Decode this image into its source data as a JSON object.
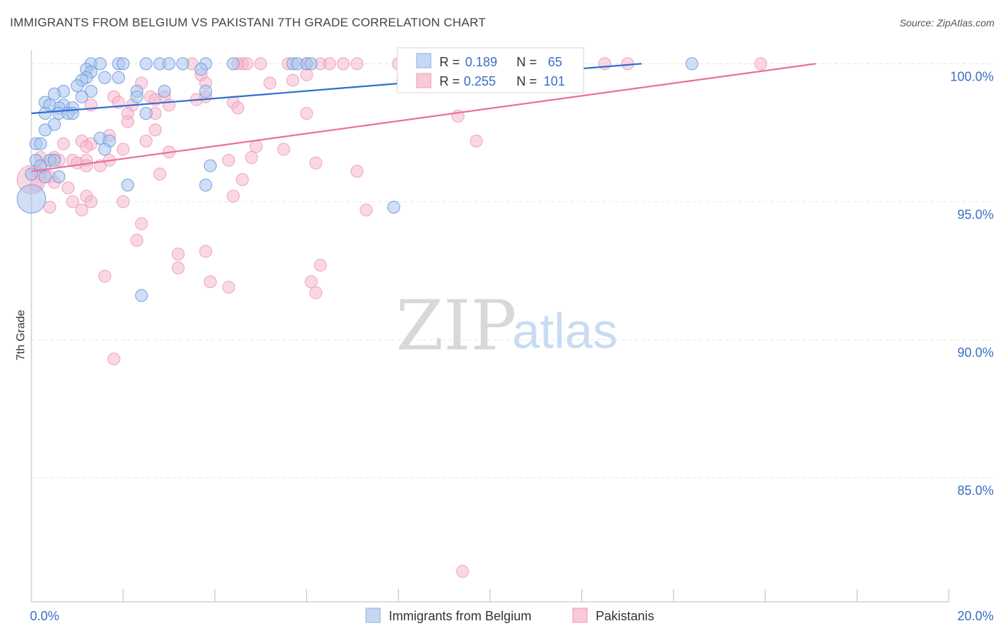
{
  "title": "IMMIGRANTS FROM BELGIUM VS PAKISTANI 7TH GRADE CORRELATION CHART",
  "source": "Source: ZipAtlas.com",
  "watermark": {
    "zip": "ZIP",
    "atlas": "atlas"
  },
  "colors": {
    "blue_fill": "#a9c4ec",
    "blue_line": "#2f6fd0",
    "pink_fill": "#f5b8cc",
    "pink_line": "#e8709a",
    "axis_text": "#3a6fc4",
    "grid": "#e6e6e6"
  },
  "chart_data": {
    "type": "scatter",
    "title": "IMMIGRANTS FROM BELGIUM VS PAKISTANI 7TH GRADE CORRELATION CHART",
    "xlabel": "",
    "ylabel": "7th Grade",
    "xlim": [
      0,
      20
    ],
    "ylim": [
      80.5,
      100.5
    ],
    "x_tick_labels": [
      "0.0%",
      "20.0%"
    ],
    "y_ticks": [
      100,
      95,
      90,
      85
    ],
    "y_tick_labels": [
      "100.0%",
      "95.0%",
      "90.0%",
      "85.0%"
    ],
    "series": [
      {
        "name": "Immigrants from Belgium",
        "color": "#a9c4ec",
        "line_color": "#2f6fd0",
        "R": "0.189",
        "N": "65",
        "trend": {
          "x0": 0.0,
          "y0": 98.2,
          "x1": 13.3,
          "y1": 100.0
        },
        "points": [
          [
            1.3,
            100
          ],
          [
            1.5,
            100
          ],
          [
            1.9,
            100
          ],
          [
            2.0,
            100
          ],
          [
            2.5,
            100
          ],
          [
            2.8,
            100
          ],
          [
            3.0,
            100
          ],
          [
            3.3,
            100
          ],
          [
            3.8,
            100
          ],
          [
            4.4,
            100
          ],
          [
            5.7,
            100
          ],
          [
            5.8,
            100
          ],
          [
            6.0,
            100
          ],
          [
            6.1,
            100
          ],
          [
            14.4,
            100
          ],
          [
            1.2,
            99.8
          ],
          [
            1.3,
            99.7
          ],
          [
            1.6,
            99.5
          ],
          [
            1.9,
            99.5
          ],
          [
            1.2,
            99.5
          ],
          [
            1.1,
            99.4
          ],
          [
            3.7,
            99.8
          ],
          [
            1.0,
            99.2
          ],
          [
            1.3,
            99.0
          ],
          [
            0.7,
            99.0
          ],
          [
            1.1,
            98.8
          ],
          [
            0.5,
            98.9
          ],
          [
            2.3,
            99.0
          ],
          [
            2.9,
            99.0
          ],
          [
            0.7,
            98.5
          ],
          [
            0.6,
            98.4
          ],
          [
            0.9,
            98.4
          ],
          [
            0.3,
            98.6
          ],
          [
            0.4,
            98.5
          ],
          [
            0.3,
            98.2
          ],
          [
            0.6,
            98.2
          ],
          [
            0.8,
            98.2
          ],
          [
            0.9,
            98.2
          ],
          [
            3.8,
            99.0
          ],
          [
            2.5,
            98.2
          ],
          [
            0.5,
            97.8
          ],
          [
            0.3,
            97.6
          ],
          [
            0.1,
            97.1
          ],
          [
            0.2,
            97.1
          ],
          [
            1.5,
            97.3
          ],
          [
            1.7,
            97.2
          ],
          [
            1.6,
            96.9
          ],
          [
            0.1,
            96.5
          ],
          [
            0.4,
            96.5
          ],
          [
            0.5,
            96.5
          ],
          [
            0.2,
            96.3
          ],
          [
            0.3,
            95.9
          ],
          [
            0.6,
            95.9
          ],
          [
            0.0,
            96.0
          ],
          [
            0.0,
            95.1
          ],
          [
            2.1,
            95.6
          ],
          [
            3.8,
            95.6
          ],
          [
            3.9,
            96.3
          ],
          [
            7.9,
            94.8
          ],
          [
            2.4,
            91.6
          ],
          [
            2.3,
            98.8
          ]
        ]
      },
      {
        "name": "Pakistanis",
        "color": "#f5b8cc",
        "line_color": "#e8709a",
        "R": "0.255",
        "N": "101",
        "trend": {
          "x0": 0.0,
          "y0": 96.1,
          "x1": 17.1,
          "y1": 100.0
        },
        "points": [
          [
            3.5,
            100
          ],
          [
            4.6,
            100
          ],
          [
            4.7,
            100
          ],
          [
            5.0,
            100
          ],
          [
            5.6,
            100
          ],
          [
            6.0,
            100
          ],
          [
            6.3,
            100
          ],
          [
            6.5,
            100
          ],
          [
            6.8,
            100
          ],
          [
            7.1,
            100
          ],
          [
            8.0,
            100
          ],
          [
            8.2,
            100
          ],
          [
            8.5,
            100
          ],
          [
            11.0,
            100
          ],
          [
            11.2,
            100
          ],
          [
            12.5,
            100
          ],
          [
            13.0,
            100
          ],
          [
            15.9,
            100
          ],
          [
            8.3,
            100
          ],
          [
            4.5,
            100
          ],
          [
            3.7,
            99.6
          ],
          [
            6.0,
            99.6
          ],
          [
            8.1,
            99.4
          ],
          [
            5.7,
            99.4
          ],
          [
            5.2,
            99.3
          ],
          [
            2.4,
            99.3
          ],
          [
            3.8,
            99.3
          ],
          [
            1.8,
            98.8
          ],
          [
            2.6,
            98.8
          ],
          [
            2.7,
            98.7
          ],
          [
            2.9,
            98.8
          ],
          [
            3.6,
            98.7
          ],
          [
            3.8,
            98.8
          ],
          [
            4.4,
            98.6
          ],
          [
            1.9,
            98.6
          ],
          [
            2.2,
            98.5
          ],
          [
            3.0,
            98.5
          ],
          [
            4.5,
            98.4
          ],
          [
            1.3,
            98.5
          ],
          [
            2.1,
            98.2
          ],
          [
            2.7,
            98.2
          ],
          [
            6.0,
            98.2
          ],
          [
            9.3,
            98.1
          ],
          [
            2.1,
            97.9
          ],
          [
            2.7,
            97.6
          ],
          [
            1.7,
            97.4
          ],
          [
            1.1,
            97.2
          ],
          [
            2.5,
            97.2
          ],
          [
            1.3,
            97.1
          ],
          [
            0.7,
            97.1
          ],
          [
            1.2,
            97.0
          ],
          [
            2.0,
            96.9
          ],
          [
            3.0,
            96.8
          ],
          [
            4.9,
            97.0
          ],
          [
            9.7,
            97.2
          ],
          [
            1.2,
            96.5
          ],
          [
            1.7,
            96.5
          ],
          [
            0.6,
            96.5
          ],
          [
            0.5,
            96.6
          ],
          [
            0.2,
            96.6
          ],
          [
            0.9,
            96.5
          ],
          [
            0.3,
            96.3
          ],
          [
            1.0,
            96.4
          ],
          [
            1.2,
            96.3
          ],
          [
            1.5,
            96.3
          ],
          [
            4.3,
            96.5
          ],
          [
            6.2,
            96.4
          ],
          [
            7.1,
            96.1
          ],
          [
            4.8,
            96.6
          ],
          [
            0.1,
            96.1
          ],
          [
            0.2,
            96.0
          ],
          [
            0.4,
            95.9
          ],
          [
            0.1,
            95.6
          ],
          [
            0.0,
            95.8
          ],
          [
            0.5,
            95.7
          ],
          [
            2.8,
            96.0
          ],
          [
            4.6,
            95.8
          ],
          [
            0.8,
            95.5
          ],
          [
            1.2,
            95.2
          ],
          [
            1.3,
            95.0
          ],
          [
            0.9,
            95.0
          ],
          [
            2.0,
            95.0
          ],
          [
            4.4,
            95.2
          ],
          [
            0.4,
            94.8
          ],
          [
            7.3,
            94.7
          ],
          [
            2.4,
            94.2
          ],
          [
            2.3,
            93.6
          ],
          [
            3.8,
            93.2
          ],
          [
            3.2,
            93.1
          ],
          [
            6.3,
            92.7
          ],
          [
            3.2,
            92.6
          ],
          [
            1.6,
            92.3
          ],
          [
            3.9,
            92.1
          ],
          [
            4.3,
            91.9
          ],
          [
            6.1,
            92.1
          ],
          [
            6.2,
            91.7
          ],
          [
            1.8,
            89.3
          ],
          [
            9.4,
            81.6
          ],
          [
            1.1,
            94.7
          ],
          [
            5.5,
            96.9
          ]
        ]
      }
    ],
    "legend": {
      "position": "bottom-center",
      "items": [
        "Immigrants from Belgium",
        "Pakistanis"
      ]
    },
    "stats_box_position": "top-center"
  }
}
